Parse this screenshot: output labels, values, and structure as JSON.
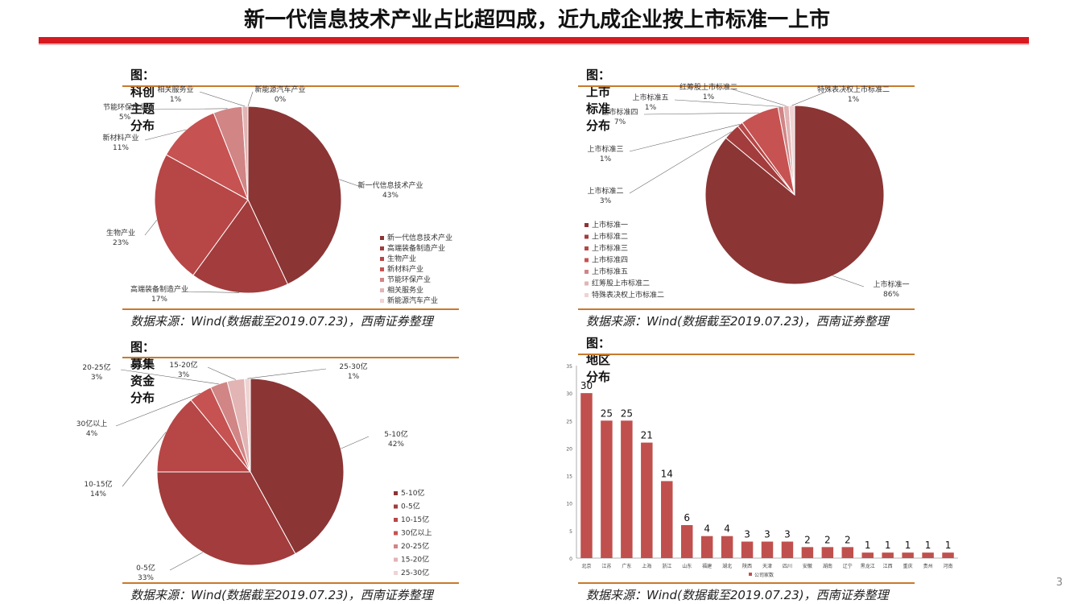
{
  "slide": {
    "title": "新一代信息技术产业占比超四成，近九成企业按上市标准一上市",
    "page_number": "3"
  },
  "colors": {
    "accent": "#d71920",
    "rule": "#c87a2c"
  },
  "chart_data": [
    {
      "id": "sector",
      "type": "pie",
      "title": "图：科创主题分布",
      "source": "数据来源：Wind(数据截至2019.07.23)，西南证券整理",
      "slices": [
        {
          "name": "新一代信息技术产业",
          "value": 43,
          "label": "43%",
          "color": "#8b3535"
        },
        {
          "name": "高端装备制造产业",
          "value": 17,
          "label": "17%",
          "color": "#a33c3c"
        },
        {
          "name": "生物产业",
          "value": 23,
          "label": "23%",
          "color": "#b74646"
        },
        {
          "name": "新材料产业",
          "value": 11,
          "label": "11%",
          "color": "#c65252"
        },
        {
          "name": "节能环保产业",
          "value": 5,
          "label": "5%",
          "color": "#d18585"
        },
        {
          "name": "相关服务业",
          "value": 1,
          "label": "1%",
          "color": "#e2b4b4"
        },
        {
          "name": "新能源汽车产业",
          "value": 0,
          "label": "0%",
          "color": "#efd3d3"
        }
      ]
    },
    {
      "id": "listing",
      "type": "pie",
      "title": "图：上市标准分布",
      "source": "数据来源：Wind(数据截至2019.07.23)，西南证券整理",
      "slices": [
        {
          "name": "上市标准一",
          "value": 86,
          "label": "86%",
          "color": "#8b3535"
        },
        {
          "name": "上市标准二",
          "value": 3,
          "label": "3%",
          "color": "#a33c3c"
        },
        {
          "name": "上市标准三",
          "value": 1,
          "label": "1%",
          "color": "#b74646"
        },
        {
          "name": "上市标准四",
          "value": 7,
          "label": "7%",
          "color": "#c65252"
        },
        {
          "name": "上市标准五",
          "value": 1,
          "label": "1%",
          "color": "#d18585"
        },
        {
          "name": "红筹股上市标准二",
          "value": 1,
          "label": "1%",
          "color": "#e2b4b4"
        },
        {
          "name": "特殊表决权上市标准二",
          "value": 1,
          "label": "1%",
          "color": "#efd3d3"
        }
      ]
    },
    {
      "id": "funding",
      "type": "pie",
      "title": "图：募集资金分布",
      "source": "数据来源：Wind(数据截至2019.07.23)，西南证券整理",
      "slices": [
        {
          "name": "5-10亿",
          "value": 42,
          "label": "42%",
          "color": "#8b3535"
        },
        {
          "name": "0-5亿",
          "value": 33,
          "label": "33%",
          "color": "#a33c3c"
        },
        {
          "name": "10-15亿",
          "value": 14,
          "label": "14%",
          "color": "#b74646"
        },
        {
          "name": "30亿以上",
          "value": 4,
          "label": "4%",
          "color": "#c65252"
        },
        {
          "name": "20-25亿",
          "value": 3,
          "label": "3%",
          "color": "#d18585"
        },
        {
          "name": "15-20亿",
          "value": 3,
          "label": "3%",
          "color": "#e2b4b4"
        },
        {
          "name": "25-30亿",
          "value": 1,
          "label": "1%",
          "color": "#efd3d3"
        }
      ]
    },
    {
      "id": "region",
      "type": "bar",
      "title": "图：地区分布",
      "source": "数据来源：Wind(数据截至2019.07.23)，西南证券整理",
      "legend": "公司家数",
      "color": "#c0504d",
      "ylim": [
        0,
        35
      ],
      "yticks": [
        0,
        5,
        10,
        15,
        20,
        25,
        30,
        35
      ],
      "categories": [
        "北京",
        "江苏",
        "广东",
        "上海",
        "浙江",
        "山东",
        "福建",
        "湖北",
        "陕西",
        "天津",
        "四川",
        "安徽",
        "湖南",
        "辽宁",
        "黑龙江",
        "江西",
        "重庆",
        "贵州",
        "河南"
      ],
      "values": [
        30,
        25,
        25,
        21,
        14,
        6,
        4,
        4,
        3,
        3,
        3,
        2,
        2,
        2,
        1,
        1,
        1,
        1,
        1
      ]
    }
  ]
}
